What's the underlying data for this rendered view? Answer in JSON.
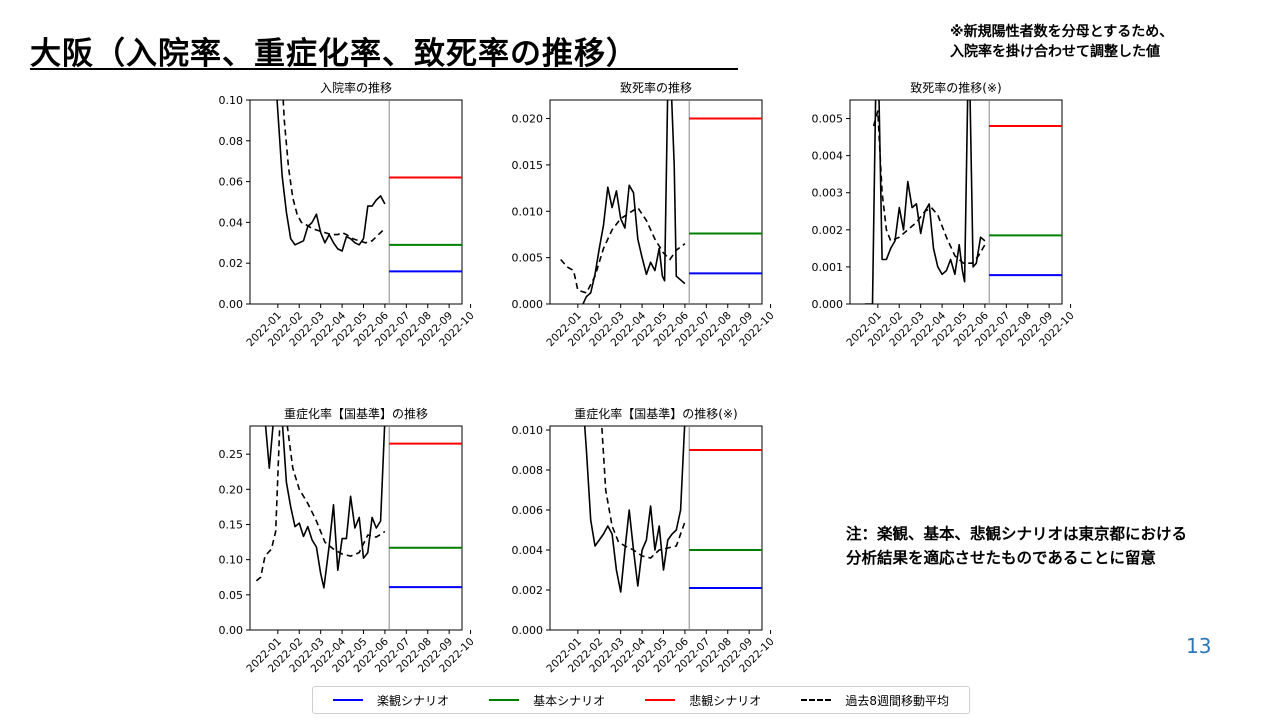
{
  "title": "大阪（入院率、重症化率、致死率の推移）",
  "note_top": [
    "※新規陽性者数を分母とするため、",
    "入院率を掛け合わせて調整した値"
  ],
  "note_mid": [
    "注：楽観、基本、悲観シナリオは東京都における",
    "分析結果を適応させたものであることに留意"
  ],
  "page_number": "13",
  "x_tick_labels": [
    "2022-01",
    "2022-02",
    "2022-03",
    "2022-04",
    "2022-05",
    "2022-06",
    "2022-07",
    "2022-08",
    "2022-09",
    "2022-10"
  ],
  "legend": [
    {
      "label": "楽観シナリオ",
      "color": "#0000ff",
      "dash": false
    },
    {
      "label": "基本シナリオ",
      "color": "#008000",
      "dash": false
    },
    {
      "label": "悲観シナリオ",
      "color": "#ff0000",
      "dash": false
    },
    {
      "label": "過去8週間移動平均",
      "color": "#000000",
      "dash": true
    }
  ],
  "chart_data": [
    {
      "type": "line",
      "title": "入院率の推移",
      "ylim": [
        0,
        0.1
      ],
      "yticks": [
        0,
        0.02,
        0.04,
        0.06,
        0.08,
        0.1
      ],
      "ytick_labels": [
        "0.00",
        "0.02",
        "0.04",
        "0.06",
        "0.08",
        "0.10"
      ],
      "scenarios": {
        "optimistic": 0.016,
        "base": 0.029,
        "pessimistic": 0.062
      },
      "series": [
        {
          "style": "solid",
          "points": [
            [
              -0.25,
              0.11
            ],
            [
              -0.1,
              0.11
            ],
            [
              0.2,
              0.063
            ],
            [
              0.4,
              0.045
            ],
            [
              0.6,
              0.032
            ],
            [
              0.8,
              0.029
            ],
            [
              1.0,
              0.03
            ],
            [
              1.2,
              0.031
            ],
            [
              1.4,
              0.038
            ],
            [
              1.6,
              0.04
            ],
            [
              1.8,
              0.044
            ],
            [
              2.0,
              0.035
            ],
            [
              2.2,
              0.03
            ],
            [
              2.4,
              0.034
            ],
            [
              2.6,
              0.03
            ],
            [
              2.8,
              0.027
            ],
            [
              3.0,
              0.026
            ],
            [
              3.2,
              0.033
            ],
            [
              3.4,
              0.032
            ],
            [
              3.6,
              0.03
            ],
            [
              3.8,
              0.029
            ],
            [
              4.0,
              0.032
            ],
            [
              4.2,
              0.048
            ],
            [
              4.4,
              0.048
            ],
            [
              4.6,
              0.051
            ],
            [
              4.8,
              0.053
            ],
            [
              5.0,
              0.049
            ]
          ]
        },
        {
          "style": "dashed",
          "points": [
            [
              0.2,
              0.11
            ],
            [
              0.3,
              0.09
            ],
            [
              0.5,
              0.067
            ],
            [
              0.7,
              0.052
            ],
            [
              0.9,
              0.044
            ],
            [
              1.1,
              0.04
            ],
            [
              1.3,
              0.039
            ],
            [
              1.6,
              0.037
            ],
            [
              1.9,
              0.036
            ],
            [
              2.2,
              0.035
            ],
            [
              2.5,
              0.034
            ],
            [
              2.8,
              0.034
            ],
            [
              3.0,
              0.035
            ],
            [
              3.2,
              0.034
            ],
            [
              3.5,
              0.032
            ],
            [
              3.8,
              0.031
            ],
            [
              4.1,
              0.03
            ],
            [
              4.4,
              0.031
            ],
            [
              4.7,
              0.034
            ],
            [
              5.0,
              0.037
            ]
          ]
        }
      ]
    },
    {
      "type": "line",
      "title": "致死率の推移",
      "ylim": [
        0,
        0.022
      ],
      "yticks": [
        0,
        0.005,
        0.01,
        0.015,
        0.02
      ],
      "ytick_labels": [
        "0.000",
        "0.005",
        "0.010",
        "0.015",
        "0.020"
      ],
      "scenarios": {
        "optimistic": 0.0033,
        "base": 0.0076,
        "pessimistic": 0.02
      },
      "series": [
        {
          "style": "solid",
          "points": [
            [
              0.0,
              -0.0002
            ],
            [
              0.2,
              -0.0002
            ],
            [
              0.4,
              0.0008
            ],
            [
              0.6,
              0.0012
            ],
            [
              0.8,
              0.0032
            ],
            [
              1.0,
              0.006
            ],
            [
              1.2,
              0.0085
            ],
            [
              1.4,
              0.0126
            ],
            [
              1.6,
              0.0104
            ],
            [
              1.8,
              0.0122
            ],
            [
              2.0,
              0.0092
            ],
            [
              2.2,
              0.0082
            ],
            [
              2.4,
              0.0128
            ],
            [
              2.6,
              0.012
            ],
            [
              2.8,
              0.007
            ],
            [
              3.0,
              0.005
            ],
            [
              3.2,
              0.0032
            ],
            [
              3.4,
              0.0045
            ],
            [
              3.6,
              0.0036
            ],
            [
              3.8,
              0.006
            ],
            [
              3.95,
              0.003
            ],
            [
              4.05,
              0.0025
            ],
            [
              4.2,
              0.0235
            ],
            [
              4.35,
              0.024
            ],
            [
              4.5,
              0.015
            ],
            [
              4.6,
              0.003
            ],
            [
              5.0,
              0.0022
            ]
          ]
        },
        {
          "style": "dashed",
          "points": [
            [
              -0.8,
              0.0048
            ],
            [
              -0.5,
              0.004
            ],
            [
              -0.2,
              0.0036
            ],
            [
              0.0,
              0.0015
            ],
            [
              0.4,
              0.0012
            ],
            [
              0.8,
              0.003
            ],
            [
              1.2,
              0.006
            ],
            [
              1.6,
              0.008
            ],
            [
              2.0,
              0.0092
            ],
            [
              2.4,
              0.0098
            ],
            [
              2.8,
              0.0104
            ],
            [
              3.2,
              0.009
            ],
            [
              3.6,
              0.007
            ],
            [
              4.0,
              0.0055
            ],
            [
              4.3,
              0.0048
            ],
            [
              4.6,
              0.0058
            ],
            [
              5.0,
              0.0065
            ]
          ]
        }
      ]
    },
    {
      "type": "line",
      "title": "致死率の推移(※)",
      "ylim": [
        0,
        0.0055
      ],
      "yticks": [
        0,
        0.001,
        0.002,
        0.003,
        0.004,
        0.005
      ],
      "ytick_labels": [
        "0.000",
        "0.001",
        "0.002",
        "0.003",
        "0.004",
        "0.005"
      ],
      "scenarios": {
        "optimistic": 0.00078,
        "base": 0.00185,
        "pessimistic": 0.0048
      },
      "series": [
        {
          "style": "solid",
          "points": [
            [
              -0.6,
              0.0
            ],
            [
              -0.25,
              0.0
            ],
            [
              -0.1,
              0.0057
            ],
            [
              0.05,
              0.0057
            ],
            [
              0.2,
              0.0012
            ],
            [
              0.4,
              0.0012
            ],
            [
              0.6,
              0.0015
            ],
            [
              0.8,
              0.0017
            ],
            [
              1.0,
              0.0026
            ],
            [
              1.2,
              0.002
            ],
            [
              1.4,
              0.0033
            ],
            [
              1.6,
              0.0026
            ],
            [
              1.8,
              0.0027
            ],
            [
              2.0,
              0.0019
            ],
            [
              2.2,
              0.0025
            ],
            [
              2.4,
              0.0027
            ],
            [
              2.6,
              0.0015
            ],
            [
              2.8,
              0.001
            ],
            [
              3.0,
              0.0008
            ],
            [
              3.2,
              0.0009
            ],
            [
              3.4,
              0.0012
            ],
            [
              3.6,
              0.0008
            ],
            [
              3.8,
              0.0016
            ],
            [
              3.95,
              0.0009
            ],
            [
              4.05,
              0.0006
            ],
            [
              4.2,
              0.0058
            ],
            [
              4.3,
              0.0058
            ],
            [
              4.45,
              0.001
            ],
            [
              4.6,
              0.0011
            ],
            [
              4.8,
              0.0018
            ],
            [
              5.0,
              0.0017
            ]
          ]
        },
        {
          "style": "dashed",
          "points": [
            [
              -0.2,
              0.0048
            ],
            [
              0.0,
              0.0052
            ],
            [
              0.2,
              0.003
            ],
            [
              0.4,
              0.002
            ],
            [
              0.6,
              0.0017
            ],
            [
              1.0,
              0.0018
            ],
            [
              1.4,
              0.002
            ],
            [
              1.8,
              0.0022
            ],
            [
              2.2,
              0.0025
            ],
            [
              2.5,
              0.0026
            ],
            [
              2.8,
              0.0024
            ],
            [
              3.2,
              0.0018
            ],
            [
              3.6,
              0.0013
            ],
            [
              4.0,
              0.0011
            ],
            [
              4.4,
              0.0011
            ],
            [
              4.7,
              0.0013
            ],
            [
              5.0,
              0.0016
            ]
          ]
        }
      ]
    },
    {
      "type": "line",
      "title": "重症化率【国基準】の推移",
      "ylim": [
        0,
        0.29
      ],
      "yticks": [
        0,
        0.05,
        0.1,
        0.15,
        0.2,
        0.25
      ],
      "ytick_labels": [
        "0.00",
        "0.05",
        "0.10",
        "0.15",
        "0.20",
        "0.25"
      ],
      "scenarios": {
        "optimistic": 0.061,
        "base": 0.117,
        "pessimistic": 0.265
      },
      "series": [
        {
          "style": "solid",
          "points": [
            [
              -0.9,
              0.3
            ],
            [
              -0.6,
              0.3
            ],
            [
              -0.4,
              0.23
            ],
            [
              -0.2,
              0.3
            ],
            [
              0.0,
              0.3
            ],
            [
              0.2,
              0.3
            ],
            [
              0.4,
              0.21
            ],
            [
              0.6,
              0.175
            ],
            [
              0.8,
              0.147
            ],
            [
              1.0,
              0.152
            ],
            [
              1.2,
              0.133
            ],
            [
              1.4,
              0.147
            ],
            [
              1.6,
              0.128
            ],
            [
              1.8,
              0.118
            ],
            [
              2.0,
              0.08
            ],
            [
              2.15,
              0.06
            ],
            [
              2.4,
              0.12
            ],
            [
              2.6,
              0.178
            ],
            [
              2.8,
              0.085
            ],
            [
              3.0,
              0.13
            ],
            [
              3.2,
              0.13
            ],
            [
              3.4,
              0.19
            ],
            [
              3.6,
              0.145
            ],
            [
              3.8,
              0.16
            ],
            [
              4.0,
              0.102
            ],
            [
              4.2,
              0.11
            ],
            [
              4.4,
              0.16
            ],
            [
              4.6,
              0.145
            ],
            [
              4.8,
              0.155
            ],
            [
              5.0,
              0.3
            ]
          ]
        },
        {
          "style": "dashed",
          "points": [
            [
              -1.0,
              0.07
            ],
            [
              -0.8,
              0.075
            ],
            [
              -0.6,
              0.105
            ],
            [
              -0.3,
              0.115
            ],
            [
              -0.1,
              0.14
            ],
            [
              0.1,
              0.3
            ],
            [
              0.4,
              0.3
            ],
            [
              0.7,
              0.23
            ],
            [
              1.0,
              0.2
            ],
            [
              1.4,
              0.18
            ],
            [
              1.8,
              0.155
            ],
            [
              2.2,
              0.125
            ],
            [
              2.6,
              0.115
            ],
            [
              3.0,
              0.108
            ],
            [
              3.4,
              0.105
            ],
            [
              3.8,
              0.11
            ],
            [
              4.2,
              0.135
            ],
            [
              4.6,
              0.132
            ],
            [
              5.0,
              0.14
            ]
          ]
        }
      ]
    },
    {
      "type": "line",
      "title": "重症化率【国基準】の推移(※)",
      "ylim": [
        0,
        0.0102
      ],
      "yticks": [
        0,
        0.002,
        0.004,
        0.006,
        0.008,
        0.01
      ],
      "ytick_labels": [
        "0.000",
        "0.002",
        "0.004",
        "0.006",
        "0.008",
        "0.010"
      ],
      "scenarios": {
        "optimistic": 0.0021,
        "base": 0.004,
        "pessimistic": 0.009
      },
      "series": [
        {
          "style": "solid",
          "points": [
            [
              0.2,
              0.0105
            ],
            [
              0.3,
              0.0105
            ],
            [
              0.4,
              0.009
            ],
            [
              0.6,
              0.0055
            ],
            [
              0.8,
              0.0042
            ],
            [
              1.0,
              0.0045
            ],
            [
              1.2,
              0.0048
            ],
            [
              1.4,
              0.0052
            ],
            [
              1.6,
              0.0048
            ],
            [
              1.8,
              0.003
            ],
            [
              2.0,
              0.0019
            ],
            [
              2.2,
              0.004
            ],
            [
              2.4,
              0.006
            ],
            [
              2.6,
              0.004
            ],
            [
              2.8,
              0.0022
            ],
            [
              3.0,
              0.004
            ],
            [
              3.2,
              0.0045
            ],
            [
              3.4,
              0.0062
            ],
            [
              3.6,
              0.004
            ],
            [
              3.8,
              0.0052
            ],
            [
              4.0,
              0.003
            ],
            [
              4.2,
              0.0045
            ],
            [
              4.4,
              0.0048
            ],
            [
              4.6,
              0.005
            ],
            [
              4.8,
              0.006
            ],
            [
              5.0,
              0.0105
            ]
          ]
        },
        {
          "style": "dashed",
          "points": [
            [
              1.0,
              0.0105
            ],
            [
              1.1,
              0.0105
            ],
            [
              1.3,
              0.007
            ],
            [
              1.6,
              0.0052
            ],
            [
              1.9,
              0.0044
            ],
            [
              2.2,
              0.0042
            ],
            [
              2.6,
              0.004
            ],
            [
              3.0,
              0.0037
            ],
            [
              3.4,
              0.0036
            ],
            [
              3.8,
              0.004
            ],
            [
              4.2,
              0.0041
            ],
            [
              4.6,
              0.0042
            ],
            [
              5.0,
              0.0054
            ]
          ]
        }
      ]
    }
  ]
}
